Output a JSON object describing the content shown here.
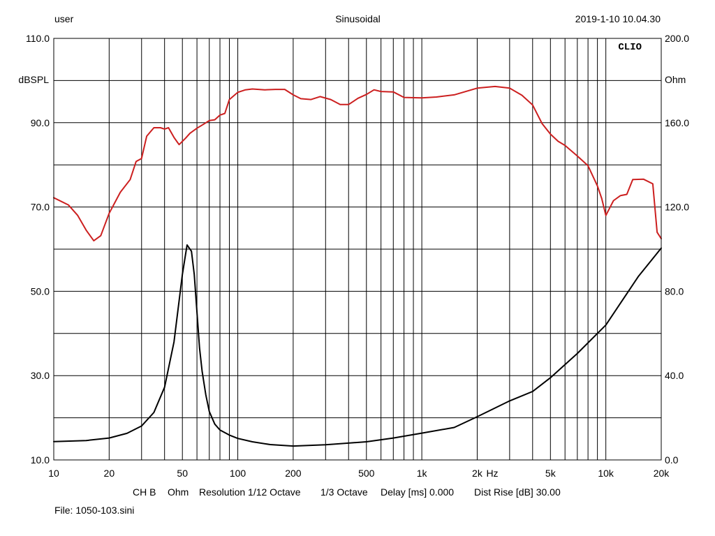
{
  "header": {
    "user": "user",
    "mode": "Sinusoidal",
    "datetime": "2019-1-10 10.04.30"
  },
  "footer": {
    "channel": "CH B",
    "unit": "Ohm",
    "resolution": "Resolution 1/12 Octave",
    "smoothing": "1/3 Octave",
    "delay": "Delay [ms] 0.000",
    "dist_rise": "Dist Rise [dB] 30.00",
    "file": "File: 1050-103.sini"
  },
  "chart_data": {
    "type": "line",
    "watermark": "CLIO",
    "x_scale": "log",
    "xlim": [
      10,
      20000
    ],
    "x_ticks": [
      {
        "value": 10,
        "label": "10"
      },
      {
        "value": 20,
        "label": "20"
      },
      {
        "value": 50,
        "label": "50"
      },
      {
        "value": 100,
        "label": "100"
      },
      {
        "value": 200,
        "label": "200"
      },
      {
        "value": 500,
        "label": "500"
      },
      {
        "value": 1000,
        "label": "1k"
      },
      {
        "value": 2000,
        "label": "2k"
      },
      {
        "value": 5000,
        "label": "5k"
      },
      {
        "value": 10000,
        "label": "10k"
      },
      {
        "value": 20000,
        "label": "20k"
      }
    ],
    "x_unit": "Hz",
    "y_left": {
      "label": "dBSPL",
      "ylim": [
        10,
        110
      ],
      "ticks": [
        {
          "value": 110,
          "label": "110.0"
        },
        {
          "value": 90,
          "label": "90.0"
        },
        {
          "value": 70,
          "label": "70.0"
        },
        {
          "value": 50,
          "label": "50.0"
        },
        {
          "value": 30,
          "label": "30.0"
        },
        {
          "value": 10,
          "label": "10.0"
        }
      ]
    },
    "y_right": {
      "label": "Ohm",
      "ylim": [
        0,
        200
      ],
      "ticks": [
        {
          "value": 200,
          "label": "200.0"
        },
        {
          "value": 160,
          "label": "160.0"
        },
        {
          "value": 120,
          "label": "120.0"
        },
        {
          "value": 80,
          "label": "80.0"
        },
        {
          "value": 40,
          "label": "40.0"
        },
        {
          "value": 0,
          "label": "0.0"
        }
      ]
    },
    "grid": true,
    "series": [
      {
        "axis": "left",
        "color": "#cc1f1f",
        "x": [
          10,
          12,
          13.5,
          15,
          16.5,
          18,
          20,
          23,
          26,
          28,
          30,
          32,
          35,
          38,
          40,
          42,
          45,
          48,
          52,
          55,
          60,
          65,
          70,
          75,
          80,
          85,
          90,
          100,
          110,
          120,
          140,
          160,
          180,
          200,
          220,
          250,
          280,
          320,
          360,
          400,
          450,
          500,
          550,
          600,
          700,
          800,
          1000,
          1200,
          1500,
          2000,
          2500,
          3000,
          3500,
          4000,
          4500,
          5000,
          5500,
          6000,
          7000,
          8000,
          9000,
          9500,
          10000,
          11000,
          12000,
          13000,
          14000,
          16000,
          18000,
          19000,
          20000
        ],
        "y": [
          72.2,
          70.5,
          68,
          64.5,
          62,
          63.2,
          68.5,
          73.5,
          76.5,
          80.8,
          81.5,
          86.8,
          88.8,
          88.8,
          88.5,
          88.8,
          86.5,
          84.8,
          86.3,
          87.5,
          88.7,
          89.6,
          90.5,
          90.7,
          91.8,
          92.2,
          95.5,
          97.2,
          97.8,
          98.0,
          97.8,
          97.9,
          97.9,
          96.6,
          95.7,
          95.5,
          96.2,
          95.5,
          94.3,
          94.3,
          95.8,
          96.7,
          97.8,
          97.4,
          97.3,
          96.0,
          95.9,
          96.1,
          96.6,
          98.2,
          98.6,
          98.2,
          96.5,
          94.2,
          89.8,
          87.3,
          85.6,
          84.6,
          82.1,
          79.8,
          75.0,
          72.0,
          68.0,
          71.5,
          72.7,
          73.0,
          76.5,
          76.6,
          75.5,
          64.0,
          62.5
        ]
      },
      {
        "axis": "right",
        "color": "#000000",
        "x": [
          10,
          15,
          20,
          25,
          30,
          35,
          40,
          45,
          50,
          53,
          56,
          58,
          60,
          62,
          64,
          67,
          70,
          75,
          80,
          90,
          100,
          120,
          150,
          200,
          300,
          500,
          700,
          1000,
          1500,
          2000,
          3000,
          4000,
          5000,
          7000,
          10000,
          15000,
          20000
        ],
        "y": [
          8.7,
          9.2,
          10.4,
          12.6,
          16.1,
          22.5,
          34.5,
          56.0,
          88.0,
          102.0,
          99.0,
          88.0,
          70.0,
          53.0,
          42.0,
          31.0,
          23.0,
          17.0,
          14.2,
          11.8,
          10.2,
          8.6,
          7.3,
          6.6,
          7.2,
          8.6,
          10.4,
          12.7,
          15.4,
          20.5,
          28.0,
          32.5,
          39.0,
          50.5,
          64.0,
          87.0,
          100.5
        ]
      }
    ]
  }
}
